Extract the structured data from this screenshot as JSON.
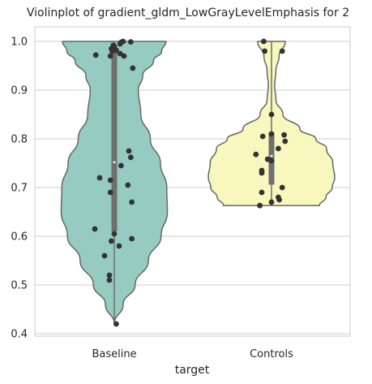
{
  "chart_data": {
    "type": "violin",
    "title": "Violinplot of gradient_gldm_LowGrayLevelEmphasis for 2",
    "xlabel": "target",
    "ylabel": "",
    "categories": [
      "Baseline",
      "Controls"
    ],
    "ylim": [
      0.395,
      1.03
    ],
    "yticks": [
      0.4,
      0.5,
      0.6,
      0.7,
      0.8,
      0.9,
      1.0
    ],
    "ytick_labels": [
      "0.4",
      "0.5",
      "0.6",
      "0.7",
      "0.8",
      "0.9",
      "1.0"
    ],
    "grid": "horizontal",
    "colors": {
      "Baseline": "#96cbc1",
      "Controls": "#f8f7bd",
      "outline": "#666666",
      "box": "#6f6f6f",
      "points": "#333333",
      "grid": "#cccccc",
      "frame": "#cccccc"
    },
    "series": [
      {
        "category": "Baseline",
        "range": [
          0.42,
          1.0
        ],
        "quartiles": [
          0.61,
          0.752,
          0.985
        ],
        "density": [
          [
            0.42,
            0.0
          ],
          [
            0.46,
            0.14
          ],
          [
            0.5,
            0.33
          ],
          [
            0.55,
            0.54
          ],
          [
            0.6,
            0.74
          ],
          [
            0.65,
            0.84
          ],
          [
            0.7,
            0.83
          ],
          [
            0.75,
            0.73
          ],
          [
            0.8,
            0.57
          ],
          [
            0.85,
            0.42
          ],
          [
            0.9,
            0.38
          ],
          [
            0.93,
            0.45
          ],
          [
            0.96,
            0.62
          ],
          [
            0.98,
            0.75
          ],
          [
            1.0,
            0.82
          ]
        ],
        "points": [
          [
            0.42,
            0.02
          ],
          [
            0.51,
            -0.05
          ],
          [
            0.52,
            -0.05
          ],
          [
            0.56,
            -0.1
          ],
          [
            0.58,
            0.05
          ],
          [
            0.59,
            -0.03
          ],
          [
            0.595,
            0.18
          ],
          [
            0.605,
            0.0
          ],
          [
            0.615,
            -0.2
          ],
          [
            0.67,
            0.18
          ],
          [
            0.69,
            -0.04
          ],
          [
            0.705,
            0.14
          ],
          [
            0.715,
            -0.04
          ],
          [
            0.72,
            -0.15
          ],
          [
            0.745,
            0.07
          ],
          [
            0.762,
            0.17
          ],
          [
            0.775,
            0.15
          ],
          [
            0.945,
            0.19
          ],
          [
            0.97,
            -0.04
          ],
          [
            0.97,
            0.1
          ],
          [
            0.972,
            -0.19
          ],
          [
            0.975,
            0.06
          ],
          [
            0.98,
            -0.02
          ],
          [
            0.982,
            0.02
          ],
          [
            0.985,
            -0.03
          ],
          [
            0.99,
            0.0
          ],
          [
            0.992,
            -0.01
          ],
          [
            0.995,
            0.06
          ],
          [
            0.998,
            0.07
          ],
          [
            0.999,
            0.17
          ],
          [
            1.0,
            0.09
          ]
        ]
      },
      {
        "category": "Controls",
        "range": [
          0.663,
          1.0
        ],
        "quartiles": [
          0.706,
          0.765,
          0.813
        ],
        "density": [
          [
            0.663,
            0.76
          ],
          [
            0.68,
            0.86
          ],
          [
            0.7,
            0.96
          ],
          [
            0.72,
            1.0
          ],
          [
            0.75,
            0.97
          ],
          [
            0.78,
            0.87
          ],
          [
            0.8,
            0.7
          ],
          [
            0.82,
            0.45
          ],
          [
            0.85,
            0.18
          ],
          [
            0.88,
            0.07
          ],
          [
            0.91,
            0.05
          ],
          [
            0.94,
            0.07
          ],
          [
            0.97,
            0.12
          ],
          [
            1.0,
            0.22
          ]
        ],
        "points": [
          [
            0.663,
            -0.12
          ],
          [
            0.67,
            0.0
          ],
          [
            0.675,
            0.08
          ],
          [
            0.68,
            0.07
          ],
          [
            0.69,
            -0.1
          ],
          [
            0.7,
            0.11
          ],
          [
            0.73,
            -0.1
          ],
          [
            0.735,
            -0.1
          ],
          [
            0.755,
            0.0
          ],
          [
            0.758,
            -0.04
          ],
          [
            0.768,
            -0.16
          ],
          [
            0.78,
            0.07
          ],
          [
            0.795,
            0.14
          ],
          [
            0.805,
            -0.09
          ],
          [
            0.808,
            0.13
          ],
          [
            0.81,
            0.0
          ],
          [
            0.85,
            0.0
          ],
          [
            0.98,
            -0.07
          ],
          [
            0.98,
            0.11
          ],
          [
            1.0,
            -0.08
          ]
        ]
      }
    ]
  }
}
